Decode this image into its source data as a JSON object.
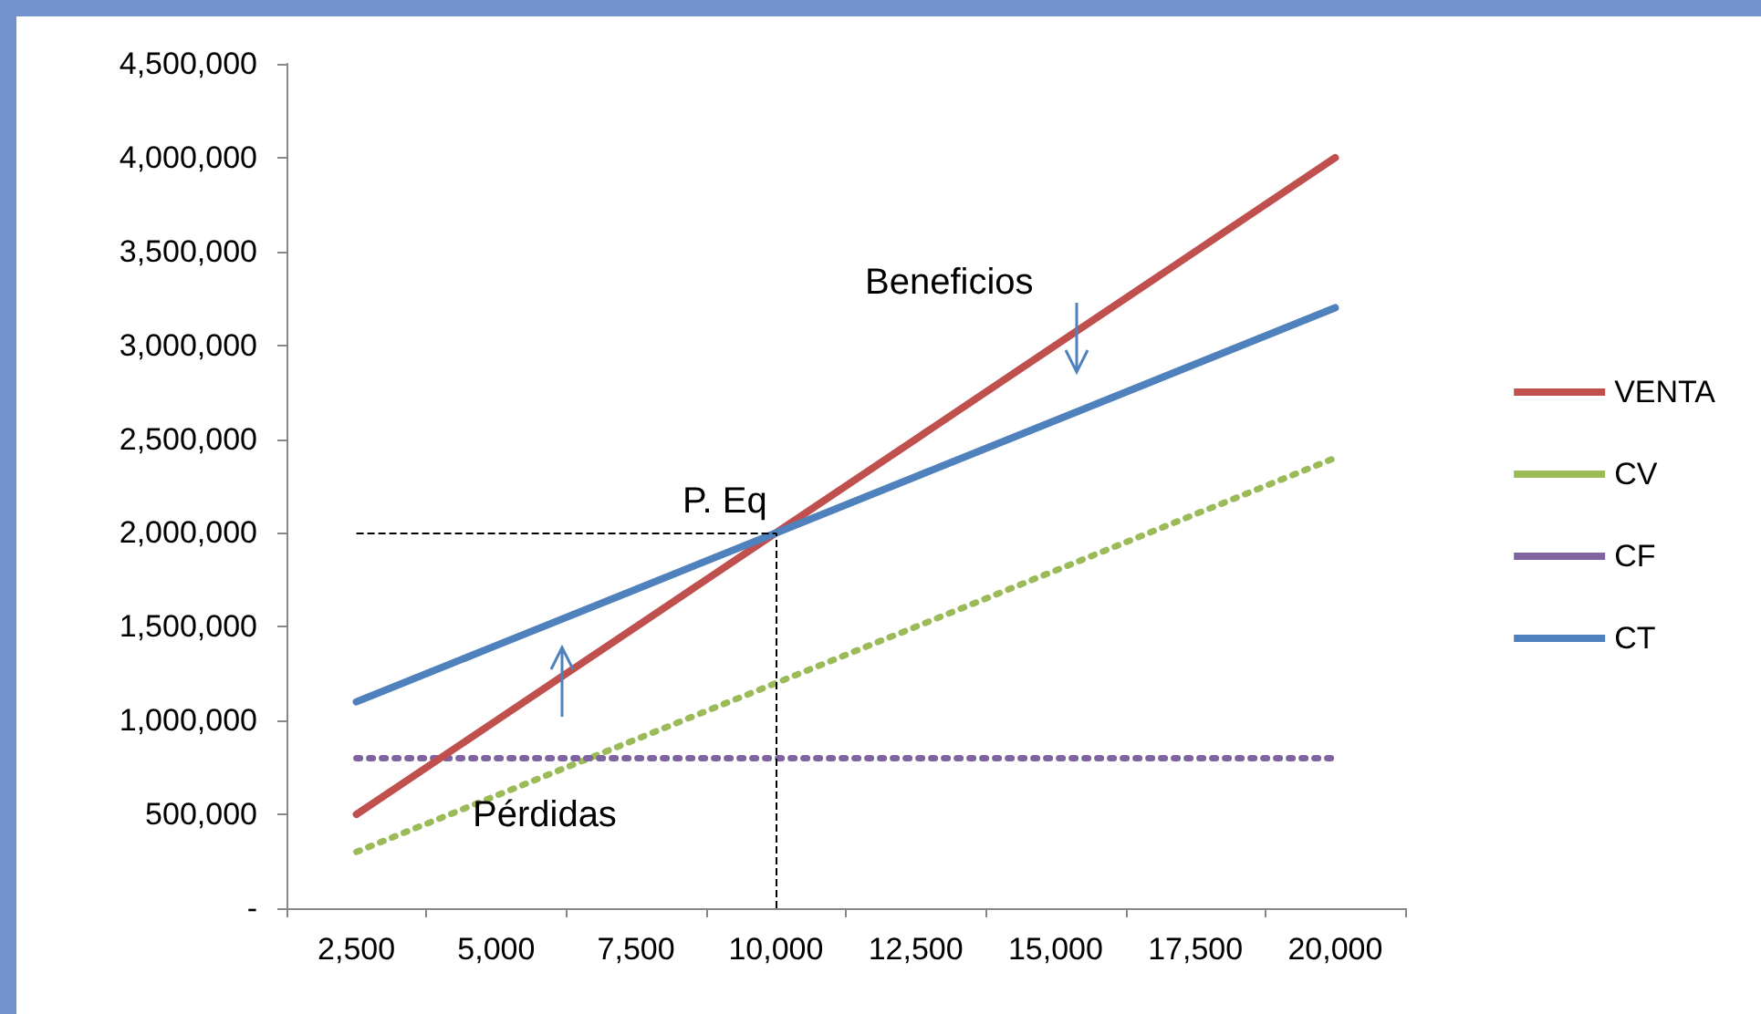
{
  "chart_data": {
    "type": "line",
    "categories": [
      "2,500",
      "5,000",
      "7,500",
      "10,000",
      "12,500",
      "15,000",
      "17,500",
      "20,000"
    ],
    "series": [
      {
        "name": "VENTA",
        "color": "#c0504d",
        "line_style": "solid",
        "values": [
          500000,
          1000000,
          1500000,
          2000000,
          2500000,
          3000000,
          3500000,
          4000000
        ]
      },
      {
        "name": "CV",
        "color": "#9bbb59",
        "line_style": "dotted",
        "values": [
          300000,
          600000,
          900000,
          1200000,
          1500000,
          1800000,
          2100000,
          2400000
        ]
      },
      {
        "name": "CF",
        "color": "#8064a2",
        "line_style": "dotted",
        "values": [
          800000,
          800000,
          800000,
          800000,
          800000,
          800000,
          800000,
          800000
        ]
      },
      {
        "name": "CT",
        "color": "#4f81bd",
        "line_style": "solid",
        "values": [
          1100000,
          1400000,
          1700000,
          2000000,
          2300000,
          2600000,
          2900000,
          3200000
        ]
      }
    ],
    "ylim": [
      0,
      4500000
    ],
    "yticks": [
      {
        "value": 0,
        "label": "-"
      },
      {
        "value": 500000,
        "label": "500,000"
      },
      {
        "value": 1000000,
        "label": "1,000,000"
      },
      {
        "value": 1500000,
        "label": "1,500,000"
      },
      {
        "value": 2000000,
        "label": "2,000,000"
      },
      {
        "value": 2500000,
        "label": "2,500,000"
      },
      {
        "value": 3000000,
        "label": "3,000,000"
      },
      {
        "value": 3500000,
        "label": "3,500,000"
      },
      {
        "value": 4000000,
        "label": "4,000,000"
      },
      {
        "value": 4500000,
        "label": "4,500,000"
      }
    ],
    "ref_lines": [
      {
        "axis": "x",
        "value": "10,000",
        "color": "#000000",
        "line_style": "dashed"
      },
      {
        "axis": "y",
        "value": 2000000,
        "color": "#000000",
        "line_style": "dashed"
      }
    ],
    "annotations": [
      "P. Eq",
      "Beneficios",
      "Pérdidas"
    ],
    "marker": "none",
    "grid": false,
    "legend": "right"
  }
}
